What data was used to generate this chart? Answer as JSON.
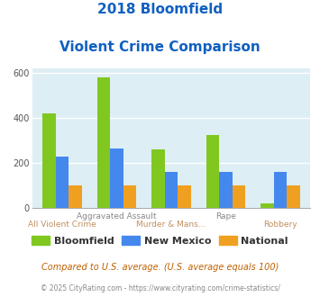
{
  "title_line1": "2018 Bloomfield",
  "title_line2": "Violent Crime Comparison",
  "categories": [
    "All Violent Crime",
    "Aggravated Assault",
    "Murder & Mans...",
    "Rape",
    "Robbery"
  ],
  "series": {
    "Bloomfield": [
      420,
      580,
      258,
      325,
      18
    ],
    "New Mexico": [
      228,
      265,
      160,
      158,
      160
    ],
    "National": [
      100,
      100,
      100,
      100,
      100
    ]
  },
  "colors": {
    "Bloomfield": "#80c820",
    "New Mexico": "#4488ee",
    "National": "#f0a020"
  },
  "ylim": [
    0,
    620
  ],
  "yticks": [
    0,
    200,
    400,
    600
  ],
  "plot_bg": "#ddeef5",
  "grid_color": "#ffffff",
  "title_color": "#1060c0",
  "xlabel_color_top": "#888888",
  "xlabel_color_bottom": "#c09060",
  "footnote": "Compared to U.S. average. (U.S. average equals 100)",
  "copyright": "© 2025 CityRating.com - https://www.cityrating.com/crime-statistics/",
  "footnote_color": "#c06000",
  "copyright_color": "#888888"
}
